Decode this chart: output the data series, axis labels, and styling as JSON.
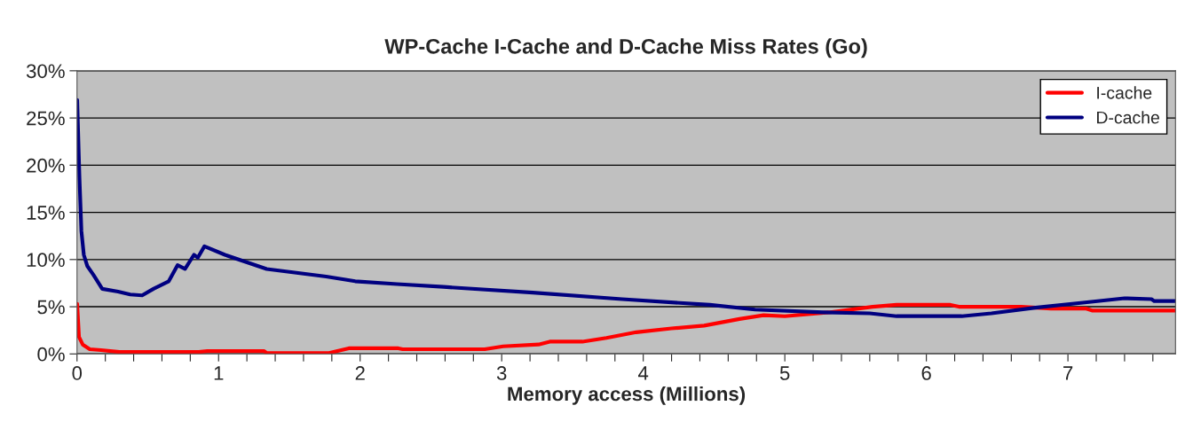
{
  "chart_data": {
    "type": "line",
    "title": "WP-Cache I-Cache and D-Cache Miss Rates (Go)",
    "xlabel": "Memory access (Millions)",
    "series": [
      {
        "name": "I-cache",
        "color": "#ff0000",
        "x": [
          0.001,
          0.014,
          0.04,
          0.09,
          0.17,
          0.3,
          0.86,
          0.92,
          1.32,
          1.34,
          1.78,
          1.92,
          2.27,
          2.3,
          2.88,
          3.01,
          3.26,
          3.34,
          3.57,
          3.74,
          3.95,
          4.2,
          4.43,
          4.68,
          4.85,
          5.0,
          5.31,
          5.62,
          5.79,
          6.17,
          6.23,
          6.67,
          6.88,
          7.13,
          7.17,
          7.76
        ],
        "values": [
          5.3,
          1.8,
          1.0,
          0.5,
          0.4,
          0.2,
          0.2,
          0.3,
          0.3,
          0.1,
          0.1,
          0.6,
          0.6,
          0.5,
          0.5,
          0.8,
          1.0,
          1.3,
          1.3,
          1.7,
          2.3,
          2.7,
          3.0,
          3.7,
          4.1,
          4.0,
          4.4,
          5.0,
          5.2,
          5.2,
          5.0,
          5.0,
          4.8,
          4.8,
          4.6,
          4.6
        ]
      },
      {
        "name": "D-cache",
        "color": "#000080",
        "x": [
          0.001,
          0.017,
          0.031,
          0.048,
          0.073,
          0.115,
          0.178,
          0.29,
          0.376,
          0.46,
          0.54,
          0.648,
          0.71,
          0.763,
          0.826,
          0.853,
          0.9,
          1.045,
          1.34,
          1.76,
          1.965,
          2.26,
          2.59,
          3.22,
          3.85,
          4.47,
          4.79,
          5.27,
          5.6,
          5.79,
          6.25,
          6.46,
          6.77,
          7.09,
          7.4,
          7.59,
          7.61,
          7.76
        ],
        "values": [
          26.9,
          18.7,
          13.0,
          10.5,
          9.3,
          8.4,
          6.9,
          6.6,
          6.3,
          6.2,
          6.9,
          7.7,
          9.4,
          9.0,
          10.5,
          10.2,
          11.4,
          10.5,
          9.0,
          8.2,
          7.7,
          7.4,
          7.1,
          6.5,
          5.8,
          5.2,
          4.7,
          4.4,
          4.3,
          4.0,
          4.0,
          4.3,
          4.9,
          5.4,
          5.9,
          5.8,
          5.6,
          5.6
        ]
      }
    ],
    "xlim": [
      0,
      7.76
    ],
    "xticks": [
      0,
      {
        "value": 0.2,
        "label": null
      },
      {
        "value": 0.4,
        "label": null
      },
      {
        "value": 0.6,
        "label": null
      },
      {
        "value": 0.8,
        "label": null
      },
      1,
      {
        "value": 1.2,
        "label": null
      },
      {
        "value": 1.4,
        "label": null
      },
      {
        "value": 1.6,
        "label": null
      },
      {
        "value": 1.8,
        "label": null
      },
      2,
      {
        "value": 2.2,
        "label": null
      },
      {
        "value": 2.4,
        "label": null
      },
      {
        "value": 2.6,
        "label": null
      },
      {
        "value": 2.8,
        "label": null
      },
      3,
      {
        "value": 3.2,
        "label": null
      },
      {
        "value": 3.4,
        "label": null
      },
      {
        "value": 3.6,
        "label": null
      },
      {
        "value": 3.8,
        "label": null
      },
      4,
      {
        "value": 4.2,
        "label": null
      },
      {
        "value": 4.4,
        "label": null
      },
      {
        "value": 4.6,
        "label": null
      },
      {
        "value": 4.8,
        "label": null
      },
      5,
      {
        "value": 5.2,
        "label": null
      },
      {
        "value": 5.4,
        "label": null
      },
      {
        "value": 5.6,
        "label": null
      },
      {
        "value": 5.8,
        "label": null
      },
      6,
      {
        "value": 6.2,
        "label": null
      },
      {
        "value": 6.4,
        "label": null
      },
      {
        "value": 6.6,
        "label": null
      },
      {
        "value": 6.8,
        "label": null
      },
      7,
      {
        "value": 7.2,
        "label": null
      },
      {
        "value": 7.4,
        "label": null
      },
      {
        "value": 7.6,
        "label": null
      }
    ],
    "ylim": [
      0,
      30
    ],
    "yticks": [
      {
        "value": 0,
        "label": "0%"
      },
      {
        "value": 5,
        "label": "5%"
      },
      {
        "value": 10,
        "label": "10%"
      },
      {
        "value": 15,
        "label": "15%"
      },
      {
        "value": 20,
        "label": "20%"
      },
      {
        "value": 25,
        "label": "25%"
      },
      {
        "value": 30,
        "label": "30%"
      }
    ],
    "grid": "y",
    "legend": "top right",
    "marker": "none",
    "line_style": "solid"
  }
}
